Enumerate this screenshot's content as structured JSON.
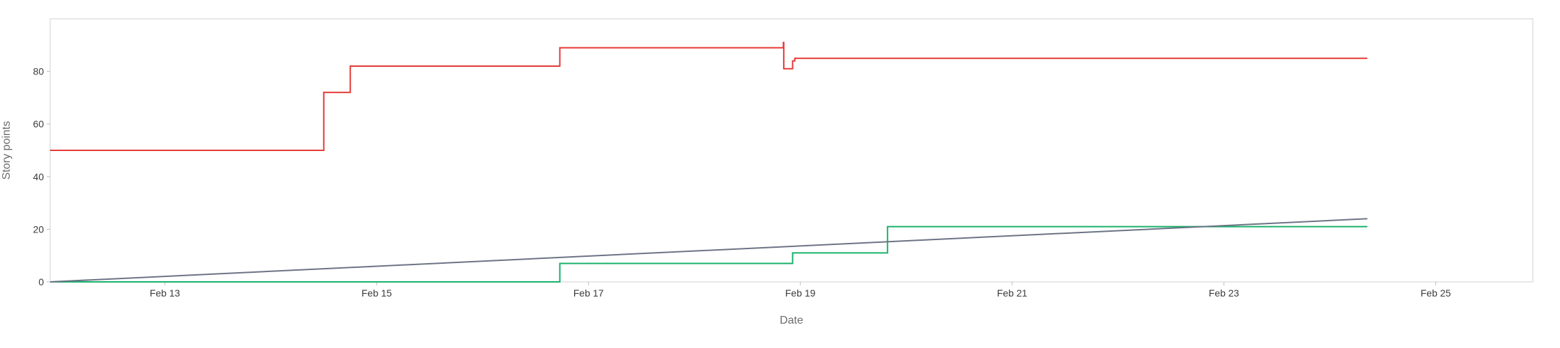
{
  "chart_data": {
    "type": "line",
    "title": "",
    "xlabel": "Date",
    "ylabel": "Story points",
    "xlim": [
      "2024-02-11T22:00",
      "2024-02-25T22:00"
    ],
    "ylim": [
      0,
      100
    ],
    "x_ticks": [
      {
        "date": "2024-02-13",
        "label": "Feb 13"
      },
      {
        "date": "2024-02-15",
        "label": "Feb 15"
      },
      {
        "date": "2024-02-17",
        "label": "Feb 17"
      },
      {
        "date": "2024-02-19",
        "label": "Feb 19"
      },
      {
        "date": "2024-02-21",
        "label": "Feb 21"
      },
      {
        "date": "2024-02-23",
        "label": "Feb 23"
      },
      {
        "date": "2024-02-25",
        "label": "Feb 25"
      }
    ],
    "y_ticks": [
      0,
      20,
      40,
      60,
      80
    ],
    "grid": false,
    "legend": "none",
    "series": [
      {
        "color": "#e53935",
        "step": true,
        "points": [
          [
            "2024-02-11T22:00",
            50
          ],
          [
            "2024-02-14T12:00",
            72
          ],
          [
            "2024-02-14T18:00",
            82
          ],
          [
            "2024-02-16T17:30",
            89
          ],
          [
            "2024-02-18T20:10",
            91
          ],
          [
            "2024-02-18T20:15",
            81
          ],
          [
            "2024-02-18T22:15",
            84
          ],
          [
            "2024-02-18T22:45",
            85
          ],
          [
            "2024-02-24T08:30",
            85
          ]
        ]
      },
      {
        "color": "#17b26a",
        "step": true,
        "points": [
          [
            "2024-02-11T22:00",
            0
          ],
          [
            "2024-02-16T17:30",
            7
          ],
          [
            "2024-02-18T22:15",
            11
          ],
          [
            "2024-02-19T19:45",
            21
          ],
          [
            "2024-02-24T08:30",
            21
          ]
        ]
      },
      {
        "color": "#6b7385",
        "step": false,
        "points": [
          [
            "2024-02-11T22:00",
            0
          ],
          [
            "2024-02-24T08:30",
            24
          ]
        ]
      }
    ]
  }
}
